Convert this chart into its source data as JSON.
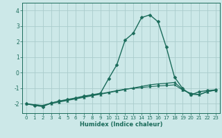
{
  "title": "",
  "xlabel": "Humidex (Indice chaleur)",
  "background_color": "#cce8e8",
  "grid_color": "#aacccc",
  "line_color": "#1a6b5a",
  "xlim": [
    -0.5,
    23.5
  ],
  "ylim": [
    -2.6,
    4.5
  ],
  "yticks": [
    -2,
    -1,
    0,
    1,
    2,
    3,
    4
  ],
  "xticks": [
    0,
    1,
    2,
    3,
    4,
    5,
    6,
    7,
    8,
    9,
    10,
    11,
    12,
    13,
    14,
    15,
    16,
    17,
    18,
    19,
    20,
    21,
    22,
    23
  ],
  "series": [
    {
      "x": [
        0,
        1,
        2,
        3,
        4,
        5,
        6,
        7,
        8,
        9,
        10,
        11,
        12,
        13,
        14,
        15,
        16,
        17,
        18,
        19,
        20,
        21,
        22,
        23
      ],
      "y": [
        -2.0,
        -2.1,
        -2.18,
        -1.95,
        -1.82,
        -1.72,
        -1.62,
        -1.5,
        -1.42,
        -1.32,
        -0.38,
        0.52,
        2.1,
        2.55,
        3.55,
        3.72,
        3.28,
        1.65,
        -0.28,
        -1.02,
        -1.42,
        -1.22,
        -1.15,
        -1.1
      ],
      "marker": "D",
      "markersize": 2.5,
      "linewidth": 1.0
    },
    {
      "x": [
        0,
        1,
        2,
        3,
        4,
        5,
        6,
        7,
        8,
        9,
        10,
        11,
        12,
        13,
        14,
        15,
        16,
        17,
        18,
        19,
        20,
        21,
        22,
        23
      ],
      "y": [
        -2.0,
        -2.06,
        -2.12,
        -1.98,
        -1.88,
        -1.78,
        -1.68,
        -1.58,
        -1.48,
        -1.38,
        -1.28,
        -1.18,
        -1.08,
        -0.98,
        -0.88,
        -0.78,
        -0.72,
        -0.68,
        -0.62,
        -1.08,
        -1.38,
        -1.42,
        -1.22,
        -1.12
      ],
      "marker": "^",
      "markersize": 2.5,
      "linewidth": 0.9
    },
    {
      "x": [
        0,
        1,
        2,
        3,
        4,
        5,
        6,
        7,
        8,
        9,
        10,
        11,
        12,
        13,
        14,
        15,
        16,
        17,
        18,
        19,
        20,
        21,
        22,
        23
      ],
      "y": [
        -2.0,
        -2.06,
        -2.1,
        -1.95,
        -1.85,
        -1.75,
        -1.65,
        -1.55,
        -1.45,
        -1.35,
        -1.25,
        -1.15,
        -1.05,
        -1.0,
        -0.95,
        -0.9,
        -0.85,
        -0.82,
        -0.78,
        -1.12,
        -1.32,
        -1.4,
        -1.2,
        -1.12
      ],
      "marker": "s",
      "markersize": 2.0,
      "linewidth": 0.8
    }
  ]
}
